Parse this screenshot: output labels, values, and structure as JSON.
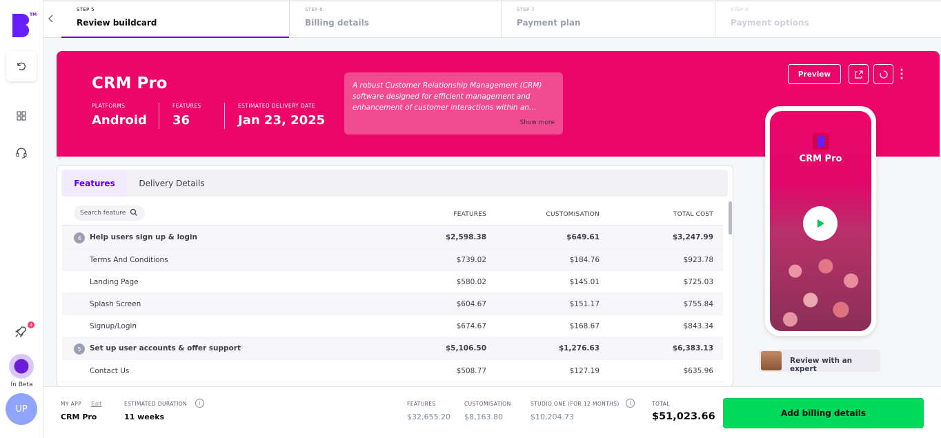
{
  "sidebar": {
    "logo_tm": "TM",
    "notification_count": "4",
    "beta_label": "In Beta",
    "avatar_initials": "UP"
  },
  "steps": [
    {
      "num": "STEP 5",
      "title": "Review buildcard"
    },
    {
      "num": "STEP 6",
      "title": "Billing details"
    },
    {
      "num": "STEP 7",
      "title": "Payment plan"
    },
    {
      "num": "STEP 8",
      "title": "Payment options"
    }
  ],
  "hero": {
    "title": "CRM Pro",
    "platforms_label": "PLATFORMS",
    "platforms_value": "Android",
    "features_label": "FEATURES",
    "features_value": "36",
    "delivery_label": "ESTIMATED DELIVERY DATE",
    "delivery_value": "Jan 23, 2025",
    "description": "A robust Customer Relationship Management (CRM) software designed for efficient management and enhancement of customer interactions within an…",
    "show_more": "Show more",
    "preview_label": "Preview",
    "accent_color": "#ec0669"
  },
  "phone": {
    "title": "CRM Pro"
  },
  "expert": {
    "label": "Review with an expert"
  },
  "tabs": [
    {
      "label": "Features"
    },
    {
      "label": "Delivery Details"
    }
  ],
  "table": {
    "search_placeholder": "Search feature",
    "headers": [
      "FEATURES",
      "CUSTOMISATION",
      "TOTAL COST"
    ],
    "rows": [
      {
        "group": true,
        "badge": "4",
        "name": "Help users sign up & login",
        "features": "$2,598.38",
        "custom": "$649.61",
        "total": "$3,247.99"
      },
      {
        "group": false,
        "name": "Terms And Conditions",
        "features": "$739.02",
        "custom": "$184.76",
        "total": "$923.78"
      },
      {
        "group": false,
        "name": "Landing Page",
        "features": "$580.02",
        "custom": "$145.01",
        "total": "$725.03"
      },
      {
        "group": false,
        "name": "Splash Screen",
        "features": "$604.67",
        "custom": "$151.17",
        "total": "$755.84"
      },
      {
        "group": false,
        "name": "Signup/Login",
        "features": "$674.67",
        "custom": "$168.67",
        "total": "$843.34"
      },
      {
        "group": true,
        "badge": "5",
        "name": "Set up user accounts & offer support",
        "features": "$5,106.50",
        "custom": "$1,276.63",
        "total": "$6,383.13"
      },
      {
        "group": false,
        "name": "Contact Us",
        "features": "$508.77",
        "custom": "$127.19",
        "total": "$635.96"
      }
    ]
  },
  "footer": {
    "myapp_label": "MY APP",
    "edit_label": "Edit",
    "myapp_value": "CRM Pro",
    "duration_label": "ESTIMATED DURATION",
    "duration_value": "11 weeks",
    "features_label": "FEATURES",
    "features_value": "$32,655.20",
    "custom_label": "CUSTOMISATION",
    "custom_value": "$8,163.80",
    "studio_label": "STUDIO ONE (FOR 12 MONTHS)",
    "studio_value": "$10,204.73",
    "total_label": "TOTAL",
    "total_value": "$51,023.66",
    "cta_label": "Add billing details",
    "cta_color": "#00d95a"
  }
}
